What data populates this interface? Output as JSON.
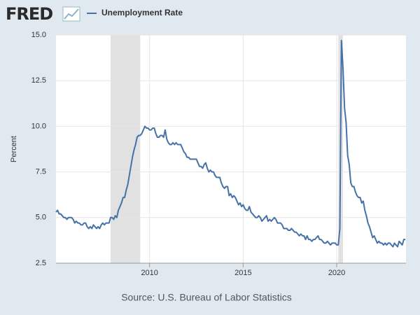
{
  "header": {
    "logo": "FRED"
  },
  "chart_data": {
    "type": "line",
    "source": "Source: U.S. Bureau of Labor Statistics",
    "y_label": "Percent",
    "grid": true,
    "xlim": [
      2005.0,
      2023.7
    ],
    "xticks": [
      2010,
      2015,
      2020
    ],
    "ylim": [
      2.5,
      15
    ],
    "yticks": [
      2.5,
      {
        "value": 5,
        "label": "5.0"
      },
      7.5,
      {
        "value": 10,
        "label": "10.0"
      },
      12.5,
      {
        "value": 15,
        "label": "15.0"
      }
    ],
    "shaded_ranges": [
      [
        2007.917,
        2009.5
      ],
      [
        2020.083,
        2020.333
      ]
    ],
    "shade_color": "#e1e1e1",
    "x": [
      2005,
      2005.083,
      2005.167,
      2005.25,
      2005.333,
      2005.417,
      2005.5,
      2005.583,
      2005.667,
      2005.75,
      2005.833,
      2005.917,
      2006,
      2006.083,
      2006.167,
      2006.25,
      2006.333,
      2006.417,
      2006.5,
      2006.583,
      2006.667,
      2006.75,
      2006.833,
      2006.917,
      2007,
      2007.083,
      2007.167,
      2007.25,
      2007.333,
      2007.417,
      2007.5,
      2007.583,
      2007.667,
      2007.75,
      2007.833,
      2007.917,
      2008,
      2008.083,
      2008.167,
      2008.25,
      2008.333,
      2008.417,
      2008.5,
      2008.583,
      2008.667,
      2008.75,
      2008.833,
      2008.917,
      2009,
      2009.083,
      2009.167,
      2009.25,
      2009.333,
      2009.417,
      2009.5,
      2009.583,
      2009.667,
      2009.75,
      2009.833,
      2009.917,
      2010,
      2010.083,
      2010.167,
      2010.25,
      2010.333,
      2010.417,
      2010.5,
      2010.583,
      2010.667,
      2010.75,
      2010.833,
      2010.917,
      2011,
      2011.083,
      2011.167,
      2011.25,
      2011.333,
      2011.417,
      2011.5,
      2011.583,
      2011.667,
      2011.75,
      2011.833,
      2011.917,
      2012,
      2012.083,
      2012.167,
      2012.25,
      2012.333,
      2012.417,
      2012.5,
      2012.583,
      2012.667,
      2012.75,
      2012.833,
      2012.917,
      2013,
      2013.083,
      2013.167,
      2013.25,
      2013.333,
      2013.417,
      2013.5,
      2013.583,
      2013.667,
      2013.75,
      2013.833,
      2013.917,
      2014,
      2014.083,
      2014.167,
      2014.25,
      2014.333,
      2014.417,
      2014.5,
      2014.583,
      2014.667,
      2014.75,
      2014.833,
      2014.917,
      2015,
      2015.083,
      2015.167,
      2015.25,
      2015.333,
      2015.417,
      2015.5,
      2015.583,
      2015.667,
      2015.75,
      2015.833,
      2015.917,
      2016,
      2016.083,
      2016.167,
      2016.25,
      2016.333,
      2016.417,
      2016.5,
      2016.583,
      2016.667,
      2016.75,
      2016.833,
      2016.917,
      2017,
      2017.083,
      2017.167,
      2017.25,
      2017.333,
      2017.417,
      2017.5,
      2017.583,
      2017.667,
      2017.75,
      2017.833,
      2017.917,
      2018,
      2018.083,
      2018.167,
      2018.25,
      2018.333,
      2018.417,
      2018.5,
      2018.583,
      2018.667,
      2018.75,
      2018.833,
      2018.917,
      2019,
      2019.083,
      2019.167,
      2019.25,
      2019.333,
      2019.417,
      2019.5,
      2019.583,
      2019.667,
      2019.75,
      2019.833,
      2019.917,
      2020,
      2020.083,
      2020.167,
      2020.25,
      2020.333,
      2020.417,
      2020.5,
      2020.583,
      2020.667,
      2020.75,
      2020.833,
      2020.917,
      2021,
      2021.083,
      2021.167,
      2021.25,
      2021.333,
      2021.417,
      2021.5,
      2021.583,
      2021.667,
      2021.75,
      2021.833,
      2021.917,
      2022,
      2022.083,
      2022.167,
      2022.25,
      2022.333,
      2022.417,
      2022.5,
      2022.583,
      2022.667,
      2022.75,
      2022.833,
      2022.917,
      2023,
      2023.083,
      2023.167,
      2023.25,
      2023.333,
      2023.417,
      2023.5,
      2023.583,
      2023.667
    ],
    "series": [
      {
        "name": "Unemployment Rate",
        "color": "#4572a7",
        "values": [
          5.3,
          5.4,
          5.2,
          5.2,
          5.1,
          5.0,
          5.0,
          4.9,
          5.0,
          5.0,
          5.0,
          4.9,
          4.7,
          4.8,
          4.7,
          4.7,
          4.6,
          4.6,
          4.7,
          4.7,
          4.5,
          4.4,
          4.5,
          4.4,
          4.6,
          4.5,
          4.4,
          4.5,
          4.4,
          4.6,
          4.7,
          4.6,
          4.7,
          4.7,
          4.7,
          5.0,
          5.0,
          4.9,
          5.1,
          5.0,
          5.4,
          5.6,
          5.8,
          6.1,
          6.1,
          6.5,
          6.8,
          7.3,
          7.8,
          8.3,
          8.7,
          9.0,
          9.4,
          9.5,
          9.5,
          9.6,
          9.8,
          10.0,
          9.9,
          9.9,
          9.8,
          9.8,
          9.9,
          9.9,
          9.6,
          9.4,
          9.4,
          9.5,
          9.5,
          9.4,
          9.8,
          9.3,
          9.1,
          9.0,
          9.0,
          9.1,
          9.0,
          9.1,
          9.0,
          9.0,
          9.0,
          8.8,
          8.6,
          8.5,
          8.3,
          8.3,
          8.2,
          8.2,
          8.2,
          8.2,
          8.2,
          8.0,
          7.8,
          7.8,
          7.7,
          7.9,
          8.0,
          7.7,
          7.5,
          7.6,
          7.5,
          7.5,
          7.3,
          7.2,
          7.2,
          7.2,
          6.9,
          6.7,
          6.6,
          6.7,
          6.7,
          6.2,
          6.3,
          6.1,
          6.2,
          6.1,
          5.9,
          5.7,
          5.8,
          5.6,
          5.7,
          5.5,
          5.4,
          5.4,
          5.6,
          5.3,
          5.2,
          5.1,
          5.0,
          5.0,
          5.1,
          5.0,
          4.8,
          4.9,
          5.0,
          5.1,
          4.8,
          4.9,
          4.8,
          4.9,
          5.0,
          4.9,
          4.7,
          4.7,
          4.7,
          4.6,
          4.4,
          4.4,
          4.4,
          4.3,
          4.3,
          4.4,
          4.3,
          4.2,
          4.2,
          4.1,
          4.0,
          4.1,
          4.0,
          4.0,
          3.8,
          4.0,
          3.8,
          3.8,
          3.7,
          3.8,
          3.8,
          3.9,
          4.0,
          3.8,
          3.8,
          3.7,
          3.6,
          3.6,
          3.7,
          3.6,
          3.5,
          3.6,
          3.6,
          3.6,
          3.5,
          3.5,
          4.4,
          14.7,
          13.2,
          11.0,
          10.2,
          8.4,
          7.9,
          6.9,
          6.7,
          6.7,
          6.4,
          6.2,
          6.1,
          6.1,
          5.8,
          5.9,
          5.4,
          5.1,
          4.7,
          4.5,
          4.2,
          3.9,
          4.0,
          3.8,
          3.6,
          3.7,
          3.6,
          3.6,
          3.5,
          3.6,
          3.5,
          3.6,
          3.6,
          3.5,
          3.4,
          3.6,
          3.5,
          3.4,
          3.7,
          3.6,
          3.5,
          3.8,
          3.8
        ]
      }
    ]
  }
}
